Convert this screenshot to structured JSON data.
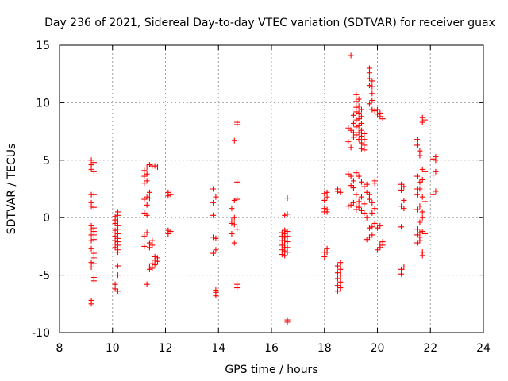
{
  "chart_data": {
    "type": "scatter",
    "title": "Day 236 of 2021, Sidereal Day-to-day VTEC variation (SDTVAR) for receiver guax",
    "xlabel": "GPS time / hours",
    "ylabel": "SDTVAR / TECUs",
    "xlim": [
      8,
      24
    ],
    "ylim": [
      -10,
      15
    ],
    "xticks": [
      8,
      10,
      12,
      14,
      16,
      18,
      20,
      22,
      24
    ],
    "yticks": [
      -10,
      -5,
      0,
      5,
      10,
      15
    ],
    "grid": true,
    "marker": "+",
    "color": "#ff0000",
    "series": [
      {
        "name": "SDTVAR",
        "x": [],
        "y": []
      }
    ],
    "points": [
      [
        9.2,
        -7.5
      ],
      [
        9.2,
        -7.2
      ],
      [
        9.2,
        -4.3
      ],
      [
        9.2,
        -3.9
      ],
      [
        9.2,
        -2.7
      ],
      [
        9.2,
        -2.0
      ],
      [
        9.2,
        -1.5
      ],
      [
        9.2,
        -1.0
      ],
      [
        9.2,
        -0.7
      ],
      [
        9.2,
        1.0
      ],
      [
        9.2,
        1.3
      ],
      [
        9.2,
        2.0
      ],
      [
        9.2,
        4.2
      ],
      [
        9.2,
        4.6
      ],
      [
        9.2,
        5.0
      ],
      [
        9.3,
        -5.5
      ],
      [
        9.3,
        -5.2
      ],
      [
        9.3,
        -4.0
      ],
      [
        9.3,
        -3.5
      ],
      [
        9.3,
        -3.1
      ],
      [
        9.3,
        -1.9
      ],
      [
        9.3,
        -1.5
      ],
      [
        9.3,
        -1.2
      ],
      [
        9.3,
        -0.9
      ],
      [
        9.3,
        0.9
      ],
      [
        9.3,
        2.0
      ],
      [
        9.3,
        4.0
      ],
      [
        9.3,
        4.8
      ],
      [
        10.1,
        -6.2
      ],
      [
        10.1,
        -5.8
      ],
      [
        10.1,
        -2.6
      ],
      [
        10.1,
        -2.3
      ],
      [
        10.1,
        -2.0
      ],
      [
        10.1,
        -1.6
      ],
      [
        10.1,
        -1.1
      ],
      [
        10.1,
        -0.5
      ],
      [
        10.1,
        -0.2
      ],
      [
        10.1,
        0.1
      ],
      [
        10.2,
        -6.4
      ],
      [
        10.2,
        -5.0
      ],
      [
        10.2,
        -4.2
      ],
      [
        10.2,
        -3.0
      ],
      [
        10.2,
        -2.8
      ],
      [
        10.2,
        -2.4
      ],
      [
        10.2,
        -2.1
      ],
      [
        10.2,
        -1.8
      ],
      [
        10.2,
        -1.4
      ],
      [
        10.2,
        -1.0
      ],
      [
        10.2,
        -0.7
      ],
      [
        10.2,
        -0.3
      ],
      [
        10.2,
        0.2
      ],
      [
        10.2,
        0.5
      ],
      [
        11.2,
        -2.5
      ],
      [
        11.2,
        -1.6
      ],
      [
        11.2,
        0.4
      ],
      [
        11.2,
        1.6
      ],
      [
        11.2,
        3.0
      ],
      [
        11.2,
        3.6
      ],
      [
        11.2,
        4.1
      ],
      [
        11.3,
        -5.8
      ],
      [
        11.3,
        -1.3
      ],
      [
        11.3,
        0.2
      ],
      [
        11.3,
        1.1
      ],
      [
        11.3,
        1.8
      ],
      [
        11.3,
        3.2
      ],
      [
        11.3,
        3.8
      ],
      [
        11.3,
        4.4
      ],
      [
        11.4,
        -4.5
      ],
      [
        11.4,
        -4.3
      ],
      [
        11.4,
        -2.6
      ],
      [
        11.4,
        -2.2
      ],
      [
        11.4,
        1.7
      ],
      [
        11.4,
        2.2
      ],
      [
        11.4,
        4.6
      ],
      [
        11.5,
        -4.4
      ],
      [
        11.5,
        -4.0
      ],
      [
        11.5,
        -2.4
      ],
      [
        11.5,
        -2.0
      ],
      [
        11.5,
        4.5
      ],
      [
        11.6,
        -4.1
      ],
      [
        11.6,
        -3.7
      ],
      [
        11.6,
        -3.4
      ],
      [
        11.6,
        4.5
      ],
      [
        11.7,
        -3.8
      ],
      [
        11.7,
        -3.5
      ],
      [
        11.7,
        4.4
      ],
      [
        12.1,
        -1.4
      ],
      [
        12.1,
        -1.1
      ],
      [
        12.1,
        1.9
      ],
      [
        12.1,
        2.2
      ],
      [
        12.2,
        2.0
      ],
      [
        12.2,
        -1.2
      ],
      [
        13.8,
        -3.1
      ],
      [
        13.8,
        -1.7
      ],
      [
        13.8,
        0.2
      ],
      [
        13.8,
        1.3
      ],
      [
        13.8,
        2.5
      ],
      [
        13.9,
        -6.8
      ],
      [
        13.9,
        -6.5
      ],
      [
        13.9,
        -6.3
      ],
      [
        13.9,
        -2.8
      ],
      [
        13.9,
        -1.8
      ],
      [
        13.9,
        1.8
      ],
      [
        14.5,
        -1.4
      ],
      [
        14.5,
        -0.5
      ],
      [
        14.5,
        -0.3
      ],
      [
        14.5,
        0.8
      ],
      [
        14.6,
        -2.2
      ],
      [
        14.6,
        -0.6
      ],
      [
        14.6,
        0.0
      ],
      [
        14.6,
        1.5
      ],
      [
        14.6,
        6.7
      ],
      [
        14.7,
        -6.1
      ],
      [
        14.7,
        -5.8
      ],
      [
        14.7,
        -1.0
      ],
      [
        14.7,
        1.6
      ],
      [
        14.7,
        3.1
      ],
      [
        14.7,
        8.1
      ],
      [
        14.7,
        8.3
      ],
      [
        16.4,
        -3.2
      ],
      [
        16.4,
        -2.8
      ],
      [
        16.4,
        -2.4
      ],
      [
        16.4,
        -2.0
      ],
      [
        16.4,
        -1.6
      ],
      [
        16.4,
        -1.3
      ],
      [
        16.5,
        -3.3
      ],
      [
        16.5,
        -2.9
      ],
      [
        16.5,
        -2.6
      ],
      [
        16.5,
        -2.3
      ],
      [
        16.5,
        -2.0
      ],
      [
        16.5,
        -1.7
      ],
      [
        16.5,
        -1.4
      ],
      [
        16.5,
        -1.1
      ],
      [
        16.5,
        0.2
      ],
      [
        16.6,
        -9.1
      ],
      [
        16.6,
        -8.9
      ],
      [
        16.6,
        -3.0
      ],
      [
        16.6,
        -2.6
      ],
      [
        16.6,
        -2.1
      ],
      [
        16.6,
        -1.6
      ],
      [
        16.6,
        -1.2
      ],
      [
        16.6,
        0.3
      ],
      [
        16.6,
        1.7
      ],
      [
        18.0,
        -3.4
      ],
      [
        18.0,
        -3.0
      ],
      [
        18.0,
        0.5
      ],
      [
        18.0,
        0.8
      ],
      [
        18.0,
        1.5
      ],
      [
        18.0,
        2.1
      ],
      [
        18.1,
        -3.0
      ],
      [
        18.1,
        -2.7
      ],
      [
        18.1,
        0.5
      ],
      [
        18.1,
        0.7
      ],
      [
        18.1,
        1.8
      ],
      [
        18.1,
        2.2
      ],
      [
        18.5,
        -6.4
      ],
      [
        18.5,
        -5.9
      ],
      [
        18.5,
        -5.3
      ],
      [
        18.5,
        -4.8
      ],
      [
        18.5,
        -4.2
      ],
      [
        18.5,
        2.3
      ],
      [
        18.5,
        2.5
      ],
      [
        18.6,
        -6.1
      ],
      [
        18.6,
        -5.6
      ],
      [
        18.6,
        -5.0
      ],
      [
        18.6,
        -4.5
      ],
      [
        18.6,
        -3.9
      ],
      [
        18.6,
        2.2
      ],
      [
        18.9,
        1.0
      ],
      [
        18.9,
        3.8
      ],
      [
        18.9,
        6.6
      ],
      [
        18.9,
        7.8
      ],
      [
        19.0,
        1.1
      ],
      [
        19.0,
        2.8
      ],
      [
        19.0,
        3.6
      ],
      [
        19.0,
        6.1
      ],
      [
        19.0,
        7.6
      ],
      [
        19.0,
        14.1
      ],
      [
        19.1,
        1.3
      ],
      [
        19.1,
        2.6
      ],
      [
        19.1,
        3.2
      ],
      [
        19.1,
        7.0
      ],
      [
        19.1,
        7.4
      ],
      [
        19.1,
        8.2
      ],
      [
        19.1,
        8.9
      ],
      [
        19.2,
        0.7
      ],
      [
        19.2,
        1.0
      ],
      [
        19.2,
        2.0
      ],
      [
        19.2,
        3.9
      ],
      [
        19.2,
        7.2
      ],
      [
        19.2,
        7.9
      ],
      [
        19.2,
        8.5
      ],
      [
        19.2,
        9.2
      ],
      [
        19.2,
        9.6
      ],
      [
        19.2,
        10.1
      ],
      [
        19.2,
        10.7
      ],
      [
        19.3,
        0.9
      ],
      [
        19.3,
        1.4
      ],
      [
        19.3,
        3.6
      ],
      [
        19.3,
        6.8
      ],
      [
        19.3,
        7.4
      ],
      [
        19.3,
        8.0
      ],
      [
        19.3,
        8.6
      ],
      [
        19.3,
        9.1
      ],
      [
        19.3,
        9.7
      ],
      [
        19.3,
        10.3
      ],
      [
        19.4,
        0.6
      ],
      [
        19.4,
        1.8
      ],
      [
        19.4,
        3.1
      ],
      [
        19.4,
        6.0
      ],
      [
        19.4,
        6.5
      ],
      [
        19.4,
        7.1
      ],
      [
        19.4,
        7.6
      ],
      [
        19.4,
        8.2
      ],
      [
        19.4,
        8.8
      ],
      [
        19.4,
        9.4
      ],
      [
        19.5,
        0.4
      ],
      [
        19.5,
        1.2
      ],
      [
        19.5,
        2.7
      ],
      [
        19.5,
        5.9
      ],
      [
        19.5,
        6.3
      ],
      [
        19.5,
        6.8
      ],
      [
        19.5,
        7.3
      ],
      [
        19.6,
        -1.9
      ],
      [
        19.6,
        0.0
      ],
      [
        19.6,
        2.2
      ],
      [
        19.6,
        2.9
      ],
      [
        19.7,
        -1.7
      ],
      [
        19.7,
        -0.9
      ],
      [
        19.7,
        1.6
      ],
      [
        19.7,
        2.0
      ],
      [
        19.7,
        9.9
      ],
      [
        19.7,
        11.5
      ],
      [
        19.7,
        12.1
      ],
      [
        19.7,
        12.6
      ],
      [
        19.7,
        13.0
      ],
      [
        19.8,
        -1.5
      ],
      [
        19.8,
        -0.8
      ],
      [
        19.8,
        0.4
      ],
      [
        19.8,
        1.3
      ],
      [
        19.8,
        9.4
      ],
      [
        19.8,
        10.2
      ],
      [
        19.8,
        10.8
      ],
      [
        19.8,
        11.4
      ],
      [
        19.8,
        11.9
      ],
      [
        19.9,
        -0.5
      ],
      [
        19.9,
        0.8
      ],
      [
        19.9,
        3.0
      ],
      [
        19.9,
        3.2
      ],
      [
        19.9,
        9.3
      ],
      [
        20.0,
        -2.8
      ],
      [
        20.0,
        -0.9
      ],
      [
        20.0,
        9.0
      ],
      [
        20.0,
        9.4
      ],
      [
        20.1,
        -2.6
      ],
      [
        20.1,
        -2.3
      ],
      [
        20.1,
        -0.7
      ],
      [
        20.1,
        9.1
      ],
      [
        20.1,
        8.8
      ],
      [
        20.2,
        -2.4
      ],
      [
        20.2,
        -2.1
      ],
      [
        20.2,
        8.6
      ],
      [
        20.9,
        -4.9
      ],
      [
        20.9,
        -4.5
      ],
      [
        20.9,
        -0.8
      ],
      [
        20.9,
        1.0
      ],
      [
        20.9,
        2.4
      ],
      [
        20.9,
        2.9
      ],
      [
        21.0,
        -4.3
      ],
      [
        21.0,
        0.8
      ],
      [
        21.0,
        1.5
      ],
      [
        21.0,
        2.7
      ],
      [
        21.5,
        -2.2
      ],
      [
        21.5,
        -1.5
      ],
      [
        21.5,
        -1.0
      ],
      [
        21.5,
        0.7
      ],
      [
        21.5,
        2.0
      ],
      [
        21.5,
        2.5
      ],
      [
        21.5,
        3.6
      ],
      [
        21.5,
        6.3
      ],
      [
        21.5,
        6.8
      ],
      [
        21.6,
        -2.0
      ],
      [
        21.6,
        -1.7
      ],
      [
        21.6,
        -1.3
      ],
      [
        21.6,
        -0.4
      ],
      [
        21.6,
        1.0
      ],
      [
        21.6,
        2.5
      ],
      [
        21.6,
        3.1
      ],
      [
        21.6,
        5.4
      ],
      [
        21.6,
        5.8
      ],
      [
        21.7,
        -3.3
      ],
      [
        21.7,
        -3.0
      ],
      [
        21.7,
        -1.2
      ],
      [
        21.7,
        0.0
      ],
      [
        21.7,
        0.5
      ],
      [
        21.7,
        1.8
      ],
      [
        21.7,
        3.3
      ],
      [
        21.7,
        4.2
      ],
      [
        21.7,
        8.3
      ],
      [
        21.7,
        8.7
      ],
      [
        21.8,
        -1.4
      ],
      [
        21.8,
        1.4
      ],
      [
        21.8,
        4.0
      ],
      [
        21.8,
        8.5
      ],
      [
        22.1,
        2.0
      ],
      [
        22.1,
        3.7
      ],
      [
        22.1,
        5.1
      ],
      [
        22.2,
        2.3
      ],
      [
        22.2,
        4.0
      ],
      [
        22.2,
        5.3
      ],
      [
        22.2,
        5.0
      ]
    ]
  }
}
